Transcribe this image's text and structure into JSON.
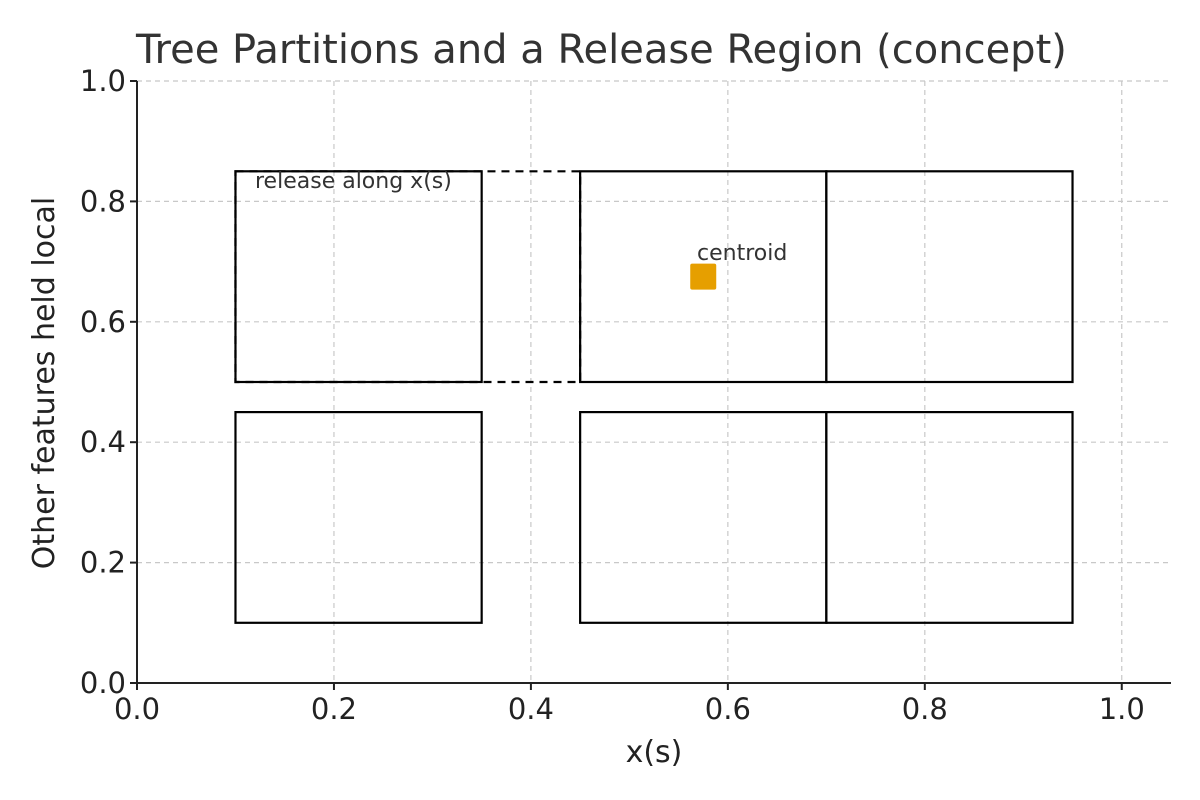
{
  "chart_data": {
    "type": "scatter",
    "title": "Tree Partitions and a Release Region (concept)",
    "xlabel": "x(s)",
    "ylabel": "Other features held local",
    "xlim": [
      0.0,
      1.05
    ],
    "ylim": [
      0.0,
      1.0
    ],
    "xticks": [
      "0.0",
      "0.2",
      "0.4",
      "0.6",
      "0.8",
      "1.0"
    ],
    "yticks": [
      "0.0",
      "0.2",
      "0.4",
      "0.6",
      "0.8",
      "1.0"
    ],
    "grid": true,
    "partitions": [
      {
        "x0": 0.1,
        "x1": 0.35,
        "y0": 0.5,
        "y1": 0.85
      },
      {
        "x0": 0.45,
        "x1": 0.7,
        "y0": 0.5,
        "y1": 0.85
      },
      {
        "x0": 0.7,
        "x1": 0.95,
        "y0": 0.5,
        "y1": 0.85
      },
      {
        "x0": 0.1,
        "x1": 0.35,
        "y0": 0.1,
        "y1": 0.45
      },
      {
        "x0": 0.45,
        "x1": 0.7,
        "y0": 0.1,
        "y1": 0.45
      },
      {
        "x0": 0.7,
        "x1": 0.95,
        "y0": 0.1,
        "y1": 0.45
      }
    ],
    "release_region": {
      "x0": 0.1,
      "x1": 0.45,
      "y0": 0.5,
      "y1": 0.85,
      "label": "release along x(s)"
    },
    "centroid": {
      "x": 0.575,
      "y": 0.675,
      "label": "centroid",
      "color": "#E69F00"
    }
  }
}
